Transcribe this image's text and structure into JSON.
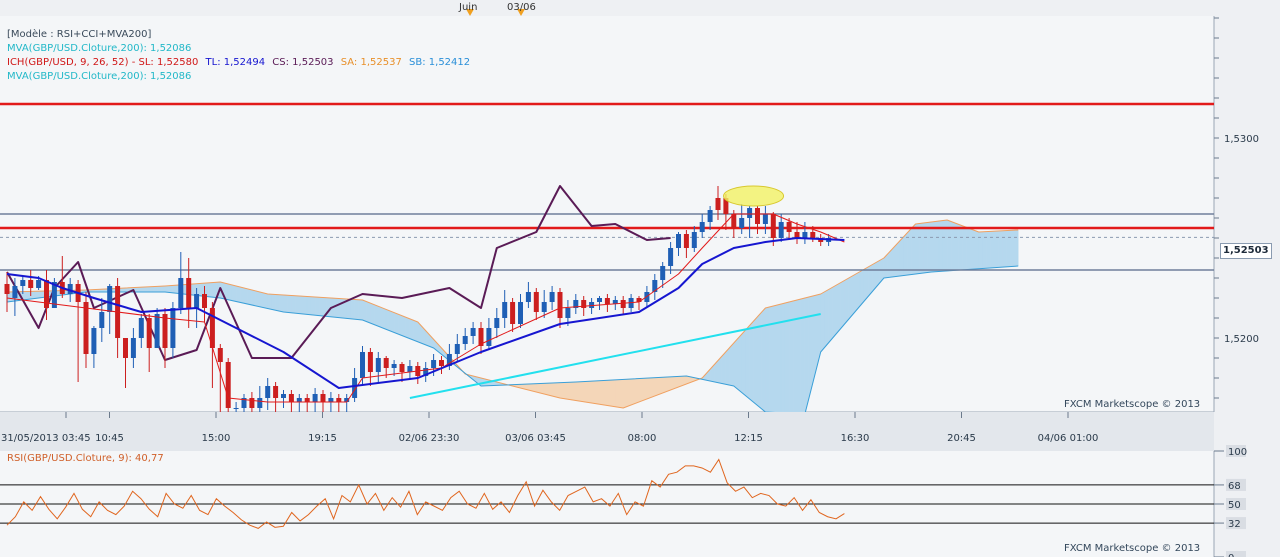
{
  "main_legend": {
    "line1": "[Modèle : RSI+CCI+MVA200]",
    "line2": "MVA(GBP/USD.Cloture,200): 1,52086",
    "line3_prefix": "ICH(GBP/USD, 9, 26, 52) -",
    "line3_sl": "SL: 1,52580",
    "line3_tl": "TL: 1,52494",
    "line3_cs": "CS: 1,52503",
    "line3_sa": "SA: 1,52537",
    "line3_sb": "SB: 1,52412",
    "line4": "MVA(GBP/USD.Cloture,200): 1,52086"
  },
  "top_markers": {
    "juin": "Juin",
    "date": "03/06"
  },
  "price_badge": "1,52503",
  "credit_main": "FXCM Marketscope © 2013",
  "credit_rsi": "FXCM Marketscope © 2013",
  "rsi_legend": "RSI(GBP/USD.Cloture, 9): 40,77",
  "colors": {
    "panel_bg": "#eef0f3",
    "chart_bg": "#f4f6f8",
    "bull": "#1f5fb5",
    "bear": "#cc1f1f",
    "red_line": "#e21a1a",
    "grey_line": "#6f7e9a",
    "tenkan": "#e21a1a",
    "kijun": "#1616d0",
    "chikou": "#5a1b56",
    "mva": "#22e0ee",
    "cloud_bull": "#b5d8ee",
    "cloud_bear": "#f4d6b8",
    "rsi_line": "#e0661f"
  },
  "chart_data": [
    {
      "type": "candlestick",
      "title": "GBP/USD",
      "xlabel": "",
      "ylabel": "",
      "ylim": [
        1.5163,
        1.5361
      ],
      "x_tick_labels": [
        "31/05/2013 03:45",
        "10:45",
        "15:00",
        "19:15",
        "02/06 23:30",
        "03/06 03:45",
        "08:00",
        "12:15",
        "16:30",
        "20:45",
        "04/06 01:00"
      ],
      "y_tick_labels": [
        "1,5200",
        "1,5300"
      ],
      "y_ticks": [
        1.52,
        1.53
      ],
      "current_price": 1.52503,
      "horizontal_lines": [
        {
          "style": "red",
          "y": 1.5317
        },
        {
          "style": "red",
          "y": 1.5255
        },
        {
          "style": "grey",
          "y": 1.5262
        },
        {
          "style": "grey",
          "y": 1.5234
        }
      ],
      "candles": [
        [
          1.5227,
          1.5222,
          1.5233,
          1.5213
        ],
        [
          1.522,
          1.5226,
          1.523,
          1.5211
        ],
        [
          1.5226,
          1.5229,
          1.5231,
          1.5222
        ],
        [
          1.5229,
          1.5225,
          1.5234,
          1.5221
        ],
        [
          1.5225,
          1.5229,
          1.5231,
          1.5224
        ],
        [
          1.5229,
          1.5215,
          1.5234,
          1.5209
        ],
        [
          1.5215,
          1.5228,
          1.523,
          1.5215
        ],
        [
          1.5228,
          1.5222,
          1.5241,
          1.522
        ],
        [
          1.5222,
          1.5227,
          1.523,
          1.5218
        ],
        [
          1.5227,
          1.5218,
          1.5229,
          1.5178
        ],
        [
          1.5218,
          1.5192,
          1.5223,
          1.5185
        ],
        [
          1.5192,
          1.5205,
          1.5206,
          1.5185
        ],
        [
          1.5205,
          1.5213,
          1.522,
          1.5198
        ],
        [
          1.5213,
          1.5226,
          1.5227,
          1.5202
        ],
        [
          1.5226,
          1.52,
          1.523,
          1.519
        ],
        [
          1.52,
          1.519,
          1.52,
          1.5175
        ],
        [
          1.519,
          1.52,
          1.5205,
          1.5185
        ],
        [
          1.52,
          1.521,
          1.5212,
          1.5195
        ],
        [
          1.521,
          1.5195,
          1.5212,
          1.5183
        ],
        [
          1.5195,
          1.5212,
          1.5215,
          1.5195
        ],
        [
          1.5212,
          1.5195,
          1.5215,
          1.5185
        ],
        [
          1.5195,
          1.5215,
          1.5218,
          1.519
        ],
        [
          1.5215,
          1.523,
          1.5243,
          1.5212
        ],
        [
          1.523,
          1.5215,
          1.524,
          1.5205
        ],
        [
          1.5215,
          1.5222,
          1.5225,
          1.5205
        ],
        [
          1.5222,
          1.5215,
          1.5226,
          1.5208
        ],
        [
          1.5215,
          1.5195,
          1.5218,
          1.5175
        ],
        [
          1.5195,
          1.5188,
          1.5197,
          1.516
        ],
        [
          1.5188,
          1.5165,
          1.519,
          1.5155
        ],
        [
          1.5165,
          1.5165,
          1.5168,
          1.5163
        ],
        [
          1.5165,
          1.517,
          1.5172,
          1.516
        ],
        [
          1.517,
          1.5165,
          1.5173,
          1.5163
        ],
        [
          1.5165,
          1.517,
          1.5176,
          1.5163
        ],
        [
          1.517,
          1.5176,
          1.518,
          1.5164
        ],
        [
          1.5176,
          1.517,
          1.5178,
          1.5163
        ],
        [
          1.517,
          1.5172,
          1.5174,
          1.5165
        ],
        [
          1.5172,
          1.5168,
          1.5174,
          1.5163
        ],
        [
          1.5168,
          1.517,
          1.5172,
          1.5163
        ],
        [
          1.517,
          1.5168,
          1.5172,
          1.5163
        ],
        [
          1.5168,
          1.5172,
          1.5175,
          1.5163
        ],
        [
          1.5172,
          1.5168,
          1.5174,
          1.5163
        ],
        [
          1.5168,
          1.517,
          1.5173,
          1.5163
        ],
        [
          1.517,
          1.5168,
          1.5172,
          1.5163
        ],
        [
          1.5168,
          1.517,
          1.5172,
          1.5163
        ],
        [
          1.517,
          1.518,
          1.5185,
          1.5168
        ],
        [
          1.518,
          1.5193,
          1.5196,
          1.5176
        ],
        [
          1.5193,
          1.5183,
          1.5195,
          1.5176
        ],
        [
          1.5183,
          1.519,
          1.5193,
          1.5178
        ],
        [
          1.519,
          1.5185,
          1.5191,
          1.518
        ],
        [
          1.5185,
          1.5187,
          1.5189,
          1.5181
        ],
        [
          1.5187,
          1.5183,
          1.5188,
          1.5178
        ],
        [
          1.5183,
          1.5186,
          1.5189,
          1.518
        ],
        [
          1.5186,
          1.5181,
          1.5188,
          1.5177
        ],
        [
          1.5181,
          1.5185,
          1.5188,
          1.5178
        ],
        [
          1.5185,
          1.5189,
          1.5192,
          1.5181
        ],
        [
          1.5189,
          1.5186,
          1.5191,
          1.5182
        ],
        [
          1.5186,
          1.5192,
          1.5197,
          1.5184
        ],
        [
          1.5192,
          1.5197,
          1.5202,
          1.5188
        ],
        [
          1.5197,
          1.5201,
          1.5205,
          1.5194
        ],
        [
          1.5201,
          1.5205,
          1.5208,
          1.5197
        ],
        [
          1.5205,
          1.5196,
          1.5208,
          1.5192
        ],
        [
          1.5196,
          1.5205,
          1.521,
          1.5194
        ],
        [
          1.5205,
          1.521,
          1.5215,
          1.52
        ],
        [
          1.521,
          1.5218,
          1.5224,
          1.5205
        ],
        [
          1.5218,
          1.5207,
          1.522,
          1.5203
        ],
        [
          1.5207,
          1.5218,
          1.5222,
          1.5205
        ],
        [
          1.5218,
          1.5223,
          1.5228,
          1.5215
        ],
        [
          1.5223,
          1.5213,
          1.5225,
          1.5209
        ],
        [
          1.5213,
          1.5218,
          1.5224,
          1.521
        ],
        [
          1.5218,
          1.5223,
          1.5226,
          1.5214
        ],
        [
          1.5223,
          1.521,
          1.5225,
          1.5205
        ],
        [
          1.521,
          1.5215,
          1.5219,
          1.5206
        ],
        [
          1.5215,
          1.5219,
          1.5222,
          1.5212
        ],
        [
          1.5219,
          1.5215,
          1.5221,
          1.5211
        ],
        [
          1.5215,
          1.5218,
          1.522,
          1.5212
        ],
        [
          1.5218,
          1.522,
          1.5221,
          1.5214
        ],
        [
          1.522,
          1.5217,
          1.5222,
          1.5213
        ],
        [
          1.5217,
          1.5219,
          1.5221,
          1.5214
        ],
        [
          1.5219,
          1.5215,
          1.5221,
          1.5212
        ],
        [
          1.5215,
          1.522,
          1.5222,
          1.5213
        ],
        [
          1.522,
          1.5218,
          1.5221,
          1.5214
        ],
        [
          1.5218,
          1.5223,
          1.5226,
          1.5215
        ],
        [
          1.5223,
          1.5229,
          1.5232,
          1.5219
        ],
        [
          1.5229,
          1.5236,
          1.5238,
          1.5225
        ],
        [
          1.5236,
          1.5245,
          1.5248,
          1.5232
        ],
        [
          1.5245,
          1.5252,
          1.5253,
          1.5241
        ],
        [
          1.5252,
          1.5245,
          1.5254,
          1.524
        ],
        [
          1.5245,
          1.5253,
          1.5256,
          1.5243
        ],
        [
          1.5253,
          1.5258,
          1.5262,
          1.525
        ],
        [
          1.5258,
          1.5264,
          1.5266,
          1.5254
        ],
        [
          1.5264,
          1.527,
          1.5276,
          1.5259
        ],
        [
          1.527,
          1.5262,
          1.5272,
          1.5254
        ],
        [
          1.5262,
          1.5255,
          1.5264,
          1.525
        ],
        [
          1.5255,
          1.526,
          1.5267,
          1.5252
        ],
        [
          1.526,
          1.5265,
          1.5266,
          1.525
        ],
        [
          1.5265,
          1.5257,
          1.5266,
          1.5252
        ],
        [
          1.5257,
          1.5262,
          1.5266,
          1.5252
        ],
        [
          1.5262,
          1.525,
          1.5263,
          1.5246
        ],
        [
          1.525,
          1.5258,
          1.5262,
          1.5248
        ],
        [
          1.5258,
          1.5253,
          1.526,
          1.5249
        ],
        [
          1.5253,
          1.525,
          1.5258,
          1.5247
        ],
        [
          1.525,
          1.5253,
          1.5258,
          1.5247
        ],
        [
          1.5253,
          1.525,
          1.5256,
          1.5248
        ],
        [
          1.525,
          1.5248,
          1.5252,
          1.5246
        ],
        [
          1.5248,
          1.525,
          1.5252,
          1.5246
        ]
      ],
      "tenkan_sen": [
        [
          0,
          1.522
        ],
        [
          10,
          1.5215
        ],
        [
          20,
          1.521
        ],
        [
          25,
          1.5208
        ],
        [
          28,
          1.517
        ],
        [
          33,
          1.5168
        ],
        [
          43,
          1.5168
        ],
        [
          45,
          1.518
        ],
        [
          55,
          1.5185
        ],
        [
          60,
          1.5197
        ],
        [
          70,
          1.5215
        ],
        [
          80,
          1.5218
        ],
        [
          85,
          1.5232
        ],
        [
          88,
          1.5245
        ],
        [
          92,
          1.5262
        ],
        [
          97,
          1.5262
        ],
        [
          100,
          1.5257
        ],
        [
          103,
          1.5253
        ],
        [
          106,
          1.5248
        ]
      ],
      "kijun_sen": [
        [
          0,
          1.5232
        ],
        [
          4,
          1.523
        ],
        [
          7,
          1.5225
        ],
        [
          11,
          1.522
        ],
        [
          17,
          1.5213
        ],
        [
          24,
          1.5215
        ],
        [
          29,
          1.5205
        ],
        [
          35,
          1.5193
        ],
        [
          42,
          1.5175
        ],
        [
          52,
          1.518
        ],
        [
          60,
          1.5193
        ],
        [
          70,
          1.5207
        ],
        [
          80,
          1.5213
        ],
        [
          85,
          1.5225
        ],
        [
          88,
          1.5237
        ],
        [
          92,
          1.5245
        ],
        [
          96,
          1.5248
        ],
        [
          100,
          1.525
        ],
        [
          106,
          1.5249
        ]
      ],
      "chikou_span": [
        [
          0,
          1.5233
        ],
        [
          4,
          1.5205
        ],
        [
          6,
          1.5225
        ],
        [
          9,
          1.5238
        ],
        [
          11,
          1.5215
        ],
        [
          16,
          1.5224
        ],
        [
          20,
          1.5189
        ],
        [
          24,
          1.5194
        ],
        [
          27,
          1.5225
        ],
        [
          31,
          1.519
        ],
        [
          36,
          1.519
        ],
        [
          41,
          1.5215
        ],
        [
          45,
          1.5222
        ],
        [
          50,
          1.522
        ],
        [
          56,
          1.5225
        ],
        [
          60,
          1.5215
        ],
        [
          62,
          1.5245
        ],
        [
          67,
          1.5253
        ],
        [
          70,
          1.5276
        ],
        [
          74,
          1.5256
        ],
        [
          77,
          1.5257
        ],
        [
          81,
          1.5249
        ],
        [
          84,
          1.525
        ]
      ],
      "mva200": [
        [
          51,
          1.517
        ],
        [
          103,
          1.5212
        ]
      ],
      "senkou_a": [
        [
          0,
          1.5223
        ],
        [
          10,
          1.5224
        ],
        [
          20,
          1.5226
        ],
        [
          27,
          1.5228
        ],
        [
          33,
          1.5222
        ],
        [
          45,
          1.5219
        ],
        [
          52,
          1.5208
        ],
        [
          58,
          1.5182
        ],
        [
          70,
          1.517
        ],
        [
          78,
          1.5165
        ],
        [
          88,
          1.518
        ],
        [
          96,
          1.5215
        ],
        [
          103,
          1.5222
        ],
        [
          111,
          1.524
        ],
        [
          115,
          1.5257
        ],
        [
          119,
          1.5259
        ],
        [
          123,
          1.5253
        ],
        [
          128,
          1.5254
        ]
      ],
      "senkou_b": [
        [
          0,
          1.5218
        ],
        [
          10,
          1.5223
        ],
        [
          20,
          1.5223
        ],
        [
          27,
          1.522
        ],
        [
          35,
          1.5213
        ],
        [
          45,
          1.5209
        ],
        [
          54,
          1.5195
        ],
        [
          60,
          1.5176
        ],
        [
          72,
          1.5178
        ],
        [
          86,
          1.5181
        ],
        [
          92,
          1.5176
        ],
        [
          96,
          1.5163
        ],
        [
          101,
          1.5162
        ],
        [
          103,
          1.5193
        ],
        [
          111,
          1.523
        ],
        [
          117,
          1.5233
        ],
        [
          128,
          1.5236
        ]
      ],
      "highlight": {
        "x": 94.5,
        "y": 1.5271
      }
    },
    {
      "type": "line",
      "title": "RSI(GBP/USD.Cloture, 9)",
      "ylim": [
        0,
        100
      ],
      "y_tick_labels": [
        "100",
        "68",
        "50",
        "32",
        "0"
      ],
      "y_ticks": [
        100,
        68,
        50,
        32,
        0
      ],
      "current_value": 40.77,
      "values": [
        30,
        38,
        52,
        44,
        57,
        45,
        36,
        47,
        60,
        45,
        38,
        52,
        44,
        40,
        48,
        62,
        55,
        45,
        38,
        60,
        50,
        46,
        58,
        44,
        40,
        55,
        48,
        42,
        35,
        30,
        27,
        33,
        28,
        29,
        42,
        34,
        40,
        48,
        55,
        36,
        58,
        52,
        68,
        50,
        60,
        44,
        56,
        47,
        62,
        40,
        52,
        48,
        44,
        56,
        62,
        50,
        46,
        60,
        45,
        52,
        42,
        58,
        71,
        48,
        63,
        52,
        44,
        58,
        62,
        66,
        52,
        55,
        48,
        60,
        40,
        52,
        48,
        72,
        66,
        78,
        80,
        86,
        86,
        84,
        80,
        92,
        70,
        62,
        66,
        56,
        60,
        58,
        50,
        48,
        56,
        44,
        54,
        42,
        38,
        36,
        41
      ]
    }
  ]
}
